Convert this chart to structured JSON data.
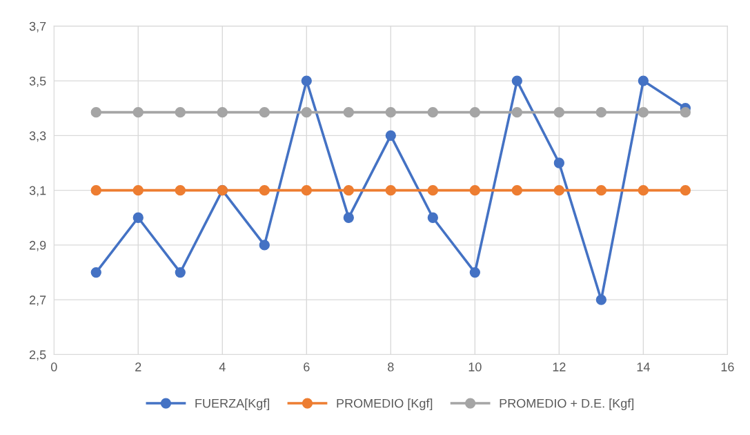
{
  "chart_data": {
    "type": "line",
    "x": [
      1,
      2,
      3,
      4,
      5,
      6,
      7,
      8,
      9,
      10,
      11,
      12,
      13,
      14,
      15
    ],
    "series": [
      {
        "name": "FUERZA[Kgf]",
        "color": "#4472c4",
        "values": [
          2.8,
          3.0,
          2.8,
          3.1,
          2.9,
          3.5,
          3.0,
          3.3,
          3.0,
          2.8,
          3.5,
          3.2,
          2.7,
          3.5,
          3.4
        ]
      },
      {
        "name": "PROMEDIO [Kgf]",
        "color": "#ed7d31",
        "values": [
          3.1,
          3.1,
          3.1,
          3.1,
          3.1,
          3.1,
          3.1,
          3.1,
          3.1,
          3.1,
          3.1,
          3.1,
          3.1,
          3.1,
          3.1
        ]
      },
      {
        "name": "PROMEDIO + D.E. [Kgf]",
        "color": "#a5a5a5",
        "values": [
          3.385,
          3.385,
          3.385,
          3.385,
          3.385,
          3.385,
          3.385,
          3.385,
          3.385,
          3.385,
          3.385,
          3.385,
          3.385,
          3.385,
          3.385
        ]
      }
    ],
    "xlim": [
      0,
      16
    ],
    "xticks": [
      0,
      2,
      4,
      6,
      8,
      10,
      12,
      14,
      16
    ],
    "ylim": [
      2.5,
      3.7
    ],
    "yticks": [
      {
        "value": 2.5,
        "label": "2,5"
      },
      {
        "value": 2.7,
        "label": "2,7"
      },
      {
        "value": 2.9,
        "label": "2,9"
      },
      {
        "value": 3.1,
        "label": "3,1"
      },
      {
        "value": 3.3,
        "label": "3,3"
      },
      {
        "value": 3.5,
        "label": "3,5"
      },
      {
        "value": 3.7,
        "label": "3,7"
      }
    ],
    "grid": true,
    "legend": "bottom",
    "marker": "circle",
    "line_style": "solid"
  }
}
